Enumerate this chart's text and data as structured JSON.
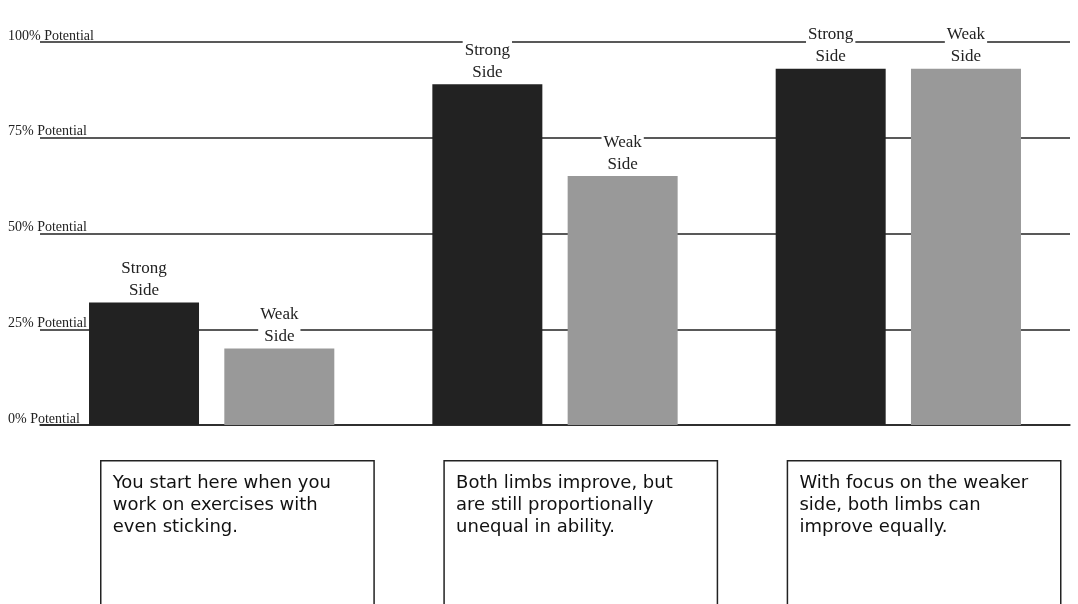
{
  "chart_data": {
    "type": "bar",
    "categories": [
      null,
      null,
      null
    ],
    "series": [
      {
        "color": "#222222",
        "values": [
          32,
          89,
          93
        ],
        "value_labels": [
          "Strong Side",
          "Strong Side",
          "Strong Side"
        ]
      },
      {
        "color": "#999999",
        "values": [
          20,
          65,
          93
        ],
        "value_labels": [
          "Weak Side",
          "Weak Side",
          "Weak Side"
        ]
      }
    ],
    "ylim": [
      0,
      100
    ],
    "yticks": [
      {
        "value": 0,
        "label": "0% Potential"
      },
      {
        "value": 25,
        "label": "25% Potential"
      },
      {
        "value": 50,
        "label": "50% Potential"
      },
      {
        "value": 75,
        "label": "75% Potential"
      },
      {
        "value": 100,
        "label": "100% Potential"
      }
    ],
    "grid": "y",
    "annotations": [
      "You start here when you work on exercises with even sticking.",
      "Both limbs improve, but are still proportionally unequal in ability.",
      "With focus on the weaker side, both limbs can improve equally."
    ]
  }
}
